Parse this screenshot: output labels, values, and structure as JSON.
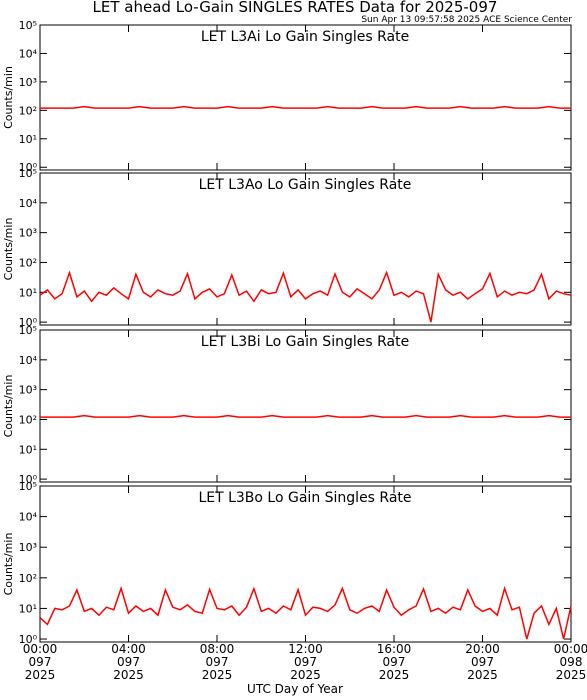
{
  "title": "LET ahead Lo-Gain SINGLES RATES Data for 2025-097",
  "timestamp": "Sun Apr 13 09:57:58 2025 ACE Science Center",
  "x_label": "UTC Day of Year",
  "chart_data": [
    {
      "type": "line",
      "title": "LET L3Ai Lo Gain Singles Rate",
      "y_label": "Counts/min",
      "log_y": true,
      "color": "#ff0000",
      "xlim": [
        0,
        1440
      ],
      "ylim": [
        0.8,
        100000
      ],
      "yticks": [
        {
          "value": 1,
          "label": "10⁰"
        },
        {
          "value": 10,
          "label": "10¹"
        },
        {
          "value": 100,
          "label": "10²"
        },
        {
          "value": 1000,
          "label": "10³"
        },
        {
          "value": 10000,
          "label": "10⁴"
        },
        {
          "value": 100000,
          "label": "10⁵"
        }
      ],
      "x": [
        0,
        30,
        60,
        90,
        120,
        150,
        180,
        210,
        240,
        270,
        300,
        330,
        360,
        390,
        420,
        450,
        480,
        510,
        540,
        570,
        600,
        630,
        660,
        690,
        720,
        750,
        780,
        810,
        840,
        870,
        900,
        930,
        960,
        990,
        1020,
        1050,
        1080,
        1110,
        1140,
        1170,
        1200,
        1230,
        1260,
        1290,
        1320,
        1350,
        1380,
        1410,
        1440
      ],
      "values": [
        120,
        120,
        120,
        120,
        135,
        120,
        120,
        120,
        120,
        135,
        120,
        120,
        120,
        135,
        120,
        120,
        120,
        135,
        120,
        120,
        120,
        135,
        120,
        120,
        120,
        120,
        135,
        120,
        120,
        120,
        135,
        120,
        120,
        120,
        135,
        120,
        120,
        120,
        135,
        120,
        120,
        120,
        135,
        120,
        120,
        120,
        135,
        120,
        120
      ]
    },
    {
      "type": "line",
      "title": "LET L3Ao Lo Gain Singles Rate",
      "y_label": "Counts/min",
      "log_y": true,
      "color": "#ff0000",
      "xlim": [
        0,
        1440
      ],
      "ylim": [
        0.8,
        100000
      ],
      "yticks": [
        {
          "value": 1,
          "label": "10⁰"
        },
        {
          "value": 10,
          "label": "10¹"
        },
        {
          "value": 100,
          "label": "10²"
        },
        {
          "value": 1000,
          "label": "10³"
        },
        {
          "value": 10000,
          "label": "10⁴"
        },
        {
          "value": 100000,
          "label": "10⁵"
        }
      ],
      "x": [
        0,
        20,
        40,
        60,
        80,
        100,
        120,
        140,
        160,
        180,
        200,
        220,
        240,
        260,
        280,
        300,
        320,
        340,
        360,
        380,
        400,
        420,
        440,
        460,
        480,
        500,
        520,
        540,
        560,
        580,
        600,
        620,
        640,
        660,
        680,
        700,
        720,
        740,
        760,
        780,
        800,
        820,
        840,
        860,
        880,
        900,
        920,
        940,
        960,
        980,
        1000,
        1020,
        1040,
        1060,
        1080,
        1100,
        1120,
        1140,
        1160,
        1180,
        1200,
        1220,
        1240,
        1260,
        1280,
        1300,
        1320,
        1340,
        1360,
        1380,
        1400,
        1420,
        1440
      ],
      "values": [
        8,
        12,
        6,
        9,
        45,
        7,
        11,
        5,
        10,
        8,
        14,
        9,
        6,
        40,
        10,
        7,
        12,
        9,
        8,
        11,
        42,
        6,
        10,
        13,
        7,
        9,
        38,
        8,
        11,
        5,
        12,
        9,
        10,
        44,
        7,
        12,
        6,
        9,
        11,
        8,
        41,
        10,
        7,
        13,
        9,
        6,
        12,
        46,
        8,
        10,
        7,
        11,
        9,
        1,
        40,
        12,
        8,
        10,
        6,
        9,
        13,
        43,
        7,
        11,
        8,
        10,
        9,
        12,
        40,
        6,
        11,
        9,
        8
      ]
    },
    {
      "type": "line",
      "title": "LET L3Bi Lo Gain Singles Rate",
      "y_label": "Counts/min",
      "log_y": true,
      "color": "#ff0000",
      "xlim": [
        0,
        1440
      ],
      "ylim": [
        0.8,
        100000
      ],
      "yticks": [
        {
          "value": 1,
          "label": "10⁰"
        },
        {
          "value": 10,
          "label": "10¹"
        },
        {
          "value": 100,
          "label": "10²"
        },
        {
          "value": 1000,
          "label": "10³"
        },
        {
          "value": 10000,
          "label": "10⁴"
        },
        {
          "value": 100000,
          "label": "10⁵"
        }
      ],
      "x": [
        0,
        30,
        60,
        90,
        120,
        150,
        180,
        210,
        240,
        270,
        300,
        330,
        360,
        390,
        420,
        450,
        480,
        510,
        540,
        570,
        600,
        630,
        660,
        690,
        720,
        750,
        780,
        810,
        840,
        870,
        900,
        930,
        960,
        990,
        1020,
        1050,
        1080,
        1110,
        1140,
        1170,
        1200,
        1230,
        1260,
        1290,
        1320,
        1350,
        1380,
        1410,
        1440
      ],
      "values": [
        120,
        120,
        120,
        120,
        135,
        120,
        120,
        120,
        120,
        135,
        120,
        120,
        120,
        135,
        120,
        120,
        120,
        135,
        120,
        120,
        120,
        135,
        120,
        120,
        120,
        120,
        135,
        120,
        120,
        120,
        135,
        120,
        120,
        120,
        135,
        120,
        120,
        120,
        135,
        120,
        120,
        120,
        135,
        120,
        120,
        120,
        135,
        120,
        120
      ]
    },
    {
      "type": "line",
      "title": "LET L3Bo Lo Gain Singles Rate",
      "y_label": "Counts/min",
      "log_y": true,
      "color": "#ff0000",
      "xlim": [
        0,
        1440
      ],
      "ylim": [
        0.8,
        100000
      ],
      "yticks": [
        {
          "value": 1,
          "label": "10⁰"
        },
        {
          "value": 10,
          "label": "10¹"
        },
        {
          "value": 100,
          "label": "10²"
        },
        {
          "value": 1000,
          "label": "10³"
        },
        {
          "value": 10000,
          "label": "10⁴"
        },
        {
          "value": 100000,
          "label": "10⁵"
        }
      ],
      "xticks": [
        {
          "value": 0,
          "label": "00:00\n097\n2025"
        },
        {
          "value": 240,
          "label": "04:00\n097\n2025"
        },
        {
          "value": 480,
          "label": "08:00\n097\n2025"
        },
        {
          "value": 720,
          "label": "12:00\n097\n2025"
        },
        {
          "value": 960,
          "label": "16:00\n097\n2025"
        },
        {
          "value": 1200,
          "label": "20:00\n097\n2025"
        },
        {
          "value": 1440,
          "label": "00:00\n098\n2025"
        }
      ],
      "x": [
        0,
        20,
        40,
        60,
        80,
        100,
        120,
        140,
        160,
        180,
        200,
        220,
        240,
        260,
        280,
        300,
        320,
        340,
        360,
        380,
        400,
        420,
        440,
        460,
        480,
        500,
        520,
        540,
        560,
        580,
        600,
        620,
        640,
        660,
        680,
        700,
        720,
        740,
        760,
        780,
        800,
        820,
        840,
        860,
        880,
        900,
        920,
        940,
        960,
        980,
        1000,
        1020,
        1040,
        1060,
        1080,
        1100,
        1120,
        1140,
        1160,
        1180,
        1200,
        1220,
        1240,
        1260,
        1280,
        1300,
        1320,
        1340,
        1360,
        1380,
        1400,
        1420,
        1440
      ],
      "values": [
        5,
        3,
        10,
        9,
        12,
        40,
        8,
        10,
        6,
        11,
        9,
        45,
        7,
        12,
        8,
        10,
        6,
        40,
        11,
        9,
        13,
        8,
        7,
        42,
        10,
        9,
        12,
        6,
        11,
        44,
        8,
        10,
        7,
        12,
        9,
        41,
        6,
        11,
        10,
        8,
        13,
        45,
        9,
        7,
        10,
        12,
        8,
        40,
        11,
        6,
        9,
        12,
        43,
        8,
        10,
        7,
        11,
        9,
        40,
        12,
        8,
        10,
        6,
        45,
        9,
        11,
        1,
        7,
        12,
        3,
        10,
        1,
        12
      ]
    }
  ]
}
